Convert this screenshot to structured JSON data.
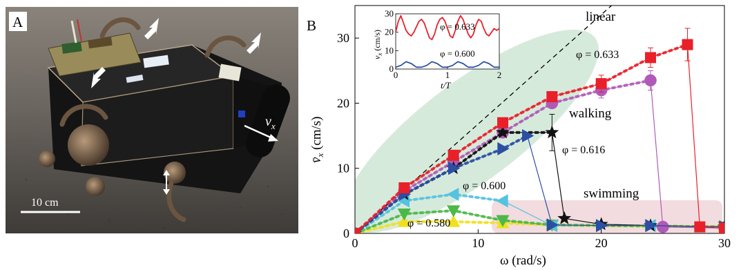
{
  "panel_a": {
    "label": "A",
    "scale_bar_label": "10 cm",
    "velocity_label": "v",
    "velocity_subscript": "x"
  },
  "panel_b": {
    "label": "B",
    "region_labels": {
      "linear": "linear",
      "walking": "walking",
      "swimming": "swimming"
    }
  },
  "chart_data": [
    {
      "type": "line",
      "xlabel": "ω (rad/s)",
      "ylabel": "v̄x (cm/s)",
      "xlim": [
        0,
        30
      ],
      "ylim": [
        0,
        35
      ],
      "xticks": [
        0,
        10,
        20,
        30
      ],
      "yticks": [
        0,
        10,
        20,
        30
      ],
      "grid": false,
      "reference_line": {
        "label": "linear",
        "slope": 1.68
      },
      "series": [
        {
          "name": "φ = 0.633",
          "color": "#e8202a",
          "marker": "square",
          "x": [
            0,
            4,
            8,
            12,
            16,
            20,
            24,
            27,
            28,
            30
          ],
          "y": [
            0,
            7,
            12,
            17,
            21,
            23,
            27,
            29,
            1,
            0.8
          ],
          "err": [
            0,
            0.4,
            0.5,
            0.6,
            0.7,
            1.3,
            1.5,
            2.5,
            0.2,
            0.2
          ]
        },
        {
          "name": "φ = 0.616",
          "color": "#2b4fa3",
          "marker": "triangle-right",
          "x": [
            0,
            4,
            8,
            12,
            14,
            16,
            20,
            24,
            30
          ],
          "y": [
            0,
            6,
            10,
            13,
            15,
            1.3,
            1.2,
            1.2,
            1.0
          ]
        },
        {
          "name": "",
          "color": "#111111",
          "marker": "star",
          "x": [
            0,
            4,
            8,
            12,
            16,
            17,
            20,
            24,
            30
          ],
          "y": [
            0,
            6,
            10,
            15.5,
            15.5,
            2.3,
            1.4,
            1.2,
            1.0
          ],
          "err": [
            0,
            0,
            0,
            0,
            2.8,
            0.2,
            0.2,
            0.2,
            0.2
          ]
        },
        {
          "name": "",
          "color": "#b05ab8",
          "marker": "circle",
          "x": [
            0,
            4,
            8,
            12,
            16,
            20,
            24,
            25,
            30
          ],
          "y": [
            0,
            6.5,
            11,
            15.5,
            20,
            22,
            23.5,
            1.0,
            0.8
          ],
          "err": [
            0,
            0.4,
            0.5,
            0.6,
            0.7,
            1.2,
            1.5,
            0.2,
            0.2
          ]
        },
        {
          "name": "φ = 0.600",
          "color": "#55c2e0",
          "marker": "triangle-left",
          "x": [
            0,
            4,
            8,
            12,
            16,
            24,
            30
          ],
          "y": [
            0,
            5,
            6,
            5,
            1.2,
            1.2,
            1.0
          ]
        },
        {
          "name": "",
          "color": "#4cb848",
          "marker": "triangle-down",
          "x": [
            0,
            4,
            8,
            12,
            16,
            30
          ],
          "y": [
            0,
            3,
            3.5,
            2.0,
            1.3,
            1.0
          ]
        },
        {
          "name": "φ = 0.580",
          "color": "#f0e020",
          "marker": "triangle-up",
          "x": [
            0,
            4,
            8,
            12,
            16,
            30
          ],
          "y": [
            0,
            1.8,
            1.8,
            1.6,
            1.3,
            1.0
          ]
        }
      ]
    },
    {
      "type": "line",
      "xlabel": "t/T",
      "ylabel": "vx (cm/s)",
      "xlim": [
        0,
        2
      ],
      "ylim": [
        0,
        30
      ],
      "xticks": [
        0,
        1,
        2
      ],
      "yticks": [
        0,
        10,
        20,
        30
      ],
      "series": [
        {
          "name": "φ = 0.633",
          "color": "#e8202a",
          "x": [
            0,
            0.05,
            0.1,
            0.15,
            0.2,
            0.25,
            0.3,
            0.35,
            0.4,
            0.45,
            0.5,
            0.55,
            0.6,
            0.65,
            0.7,
            0.75,
            0.8,
            0.85,
            0.9,
            0.95,
            1.0,
            1.05,
            1.1,
            1.15,
            1.2,
            1.25,
            1.3,
            1.35,
            1.4,
            1.45,
            1.5,
            1.55,
            1.6,
            1.65,
            1.7,
            1.75,
            1.8,
            1.85,
            1.9,
            1.95,
            2.0
          ],
          "y": [
            20,
            26,
            29,
            25,
            21,
            19,
            18,
            20,
            23,
            26,
            27,
            25,
            21,
            17,
            16,
            19,
            24,
            27,
            28,
            26,
            22,
            18,
            17,
            21,
            26,
            29,
            27,
            23,
            19,
            17,
            19,
            24,
            27,
            26,
            22,
            19,
            18,
            20,
            22,
            21,
            22
          ]
        },
        {
          "name": "φ = 0.600",
          "color": "#2b4fa3",
          "x": [
            0,
            0.1,
            0.2,
            0.3,
            0.4,
            0.5,
            0.6,
            0.7,
            0.8,
            0.9,
            1.0,
            1.1,
            1.2,
            1.3,
            1.4,
            1.5,
            1.6,
            1.7,
            1.8,
            1.9,
            2.0
          ],
          "y": [
            1,
            2,
            4,
            3,
            1,
            1,
            2,
            4,
            3,
            1,
            1,
            2,
            4,
            3,
            1,
            1,
            2,
            4,
            3,
            1,
            1
          ]
        }
      ]
    }
  ]
}
